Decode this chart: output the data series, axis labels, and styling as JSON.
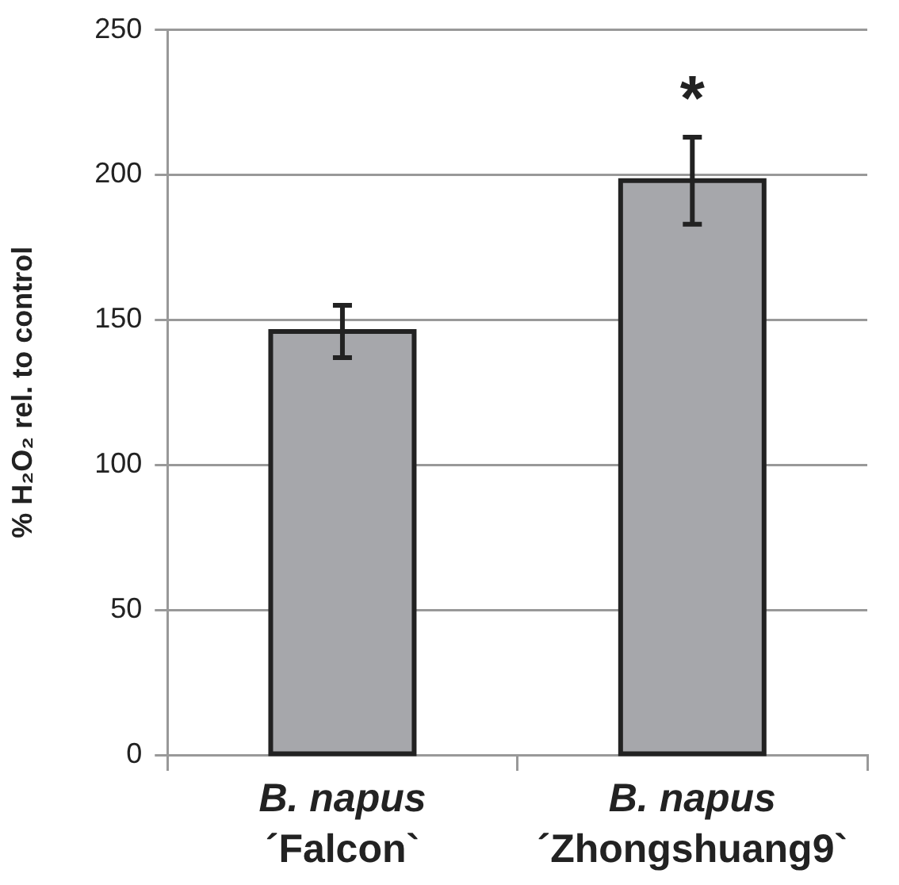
{
  "chart_data": {
    "type": "bar",
    "ylabel": "% H₂O₂ rel. to control",
    "categories": [
      "B. napus\n´Falcon`",
      "B. napus\n´Zhongshuang9`"
    ],
    "values": [
      146,
      198
    ],
    "errors": [
      9,
      15
    ],
    "color": "#a6a7ab",
    "ylim": [
      0,
      250
    ],
    "yticks": [
      0,
      50,
      100,
      150,
      200,
      250
    ],
    "grid": "y",
    "annotations": [
      "*"
    ]
  }
}
